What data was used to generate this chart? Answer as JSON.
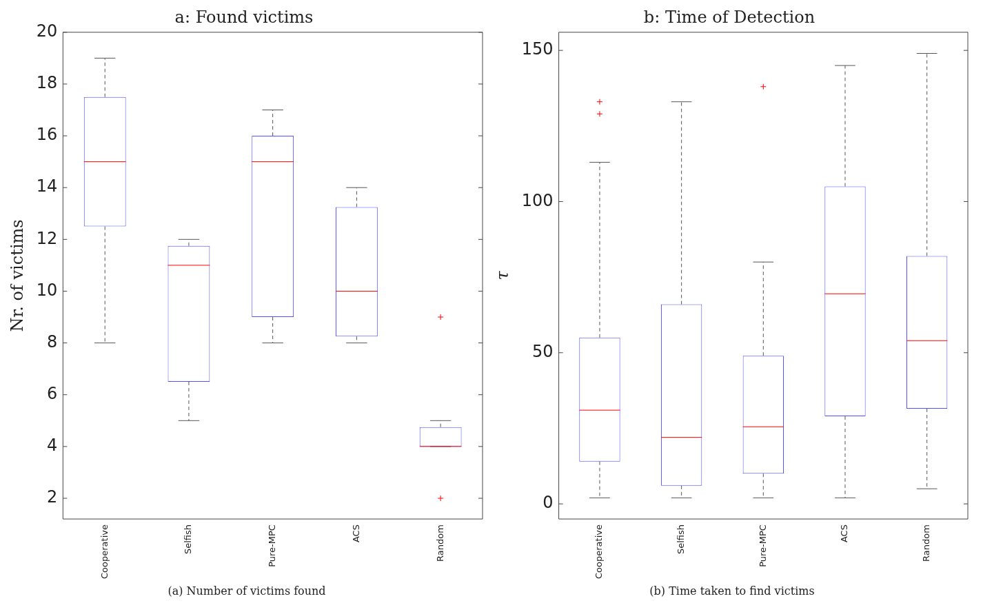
{
  "chart_data": [
    {
      "type": "box",
      "title": "a: Found victims",
      "ylabel": "Nr. of victims",
      "categories": [
        "Cooperative",
        "Selfish",
        "Pure-MPC",
        "ACS",
        "Random"
      ],
      "ylim": [
        1.2,
        20
      ],
      "yticks": [
        2,
        4,
        6,
        8,
        10,
        12,
        14,
        16,
        18,
        20
      ],
      "grid": false,
      "legend": false,
      "annotations": [
        "(a) Number of victims found"
      ],
      "series": [
        {
          "color": "#5050ff",
          "boxes": [
            {
              "low": 8,
              "q1": 12.5,
              "median": 15,
              "q3": 17.5,
              "high": 19
            },
            {
              "low": 5,
              "q1": 6.5,
              "median": 11,
              "q3": 11.75,
              "high": 12
            },
            {
              "low": 8,
              "q1": 9,
              "median": 15,
              "q3": 16,
              "high": 17
            },
            {
              "low": 8,
              "q1": 8.25,
              "median": 10,
              "q3": 13.25,
              "high": 14
            },
            {
              "low": 4,
              "q1": 4,
              "median": 4,
              "q3": 4.75,
              "high": 5,
              "outliers": [
                9,
                2
              ]
            }
          ]
        }
      ]
    },
    {
      "type": "box",
      "title": "b: Time of Detection",
      "ylabel": "τ",
      "categories": [
        "Cooperative",
        "Selfish",
        "Pure-MPC",
        "ACS",
        "Random"
      ],
      "ylim": [
        -5,
        156
      ],
      "yticks": [
        0,
        50,
        100,
        150
      ],
      "grid": false,
      "legend": false,
      "annotations": [
        "(b) Time taken to find victims"
      ],
      "series": [
        {
          "color": "#5050ff",
          "boxes": [
            {
              "low": 2,
              "q1": 14,
              "median": 31,
              "q3": 55,
              "high": 113,
              "outliers": [
                133,
                129
              ]
            },
            {
              "low": 2,
              "q1": 6,
              "median": 22,
              "q3": 66,
              "high": 133
            },
            {
              "low": 2,
              "q1": 10,
              "median": 25.5,
              "q3": 49,
              "high": 80,
              "outliers": [
                138
              ]
            },
            {
              "low": 2,
              "q1": 29,
              "median": 69.5,
              "q3": 105,
              "high": 145
            },
            {
              "low": 5,
              "q1": 31.5,
              "median": 54,
              "q3": 82,
              "high": 149
            }
          ]
        }
      ]
    }
  ]
}
